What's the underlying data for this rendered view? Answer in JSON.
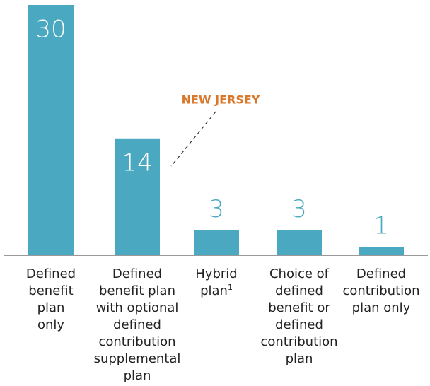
{
  "chart_data": {
    "type": "bar",
    "annotation": "NEW JERSEY",
    "categories": [
      "Defined\nbenefit\nplan\nonly",
      "Defined\nbenefit plan\nwith optional\ndefined\ncontribution\nsupplemental\nplan",
      "Hybrid\nplan",
      "Choice of\ndefined\nbenefit or\ndefined\ncontribution\nplan",
      "Defined\ncontribution\nplan only"
    ],
    "category_notes": [
      null,
      null,
      "1",
      null,
      null
    ],
    "values": [
      30,
      14,
      3,
      3,
      1
    ],
    "color": "#4aa8c0",
    "annotation_color": "#d9772a",
    "ylim": [
      0,
      30
    ]
  }
}
